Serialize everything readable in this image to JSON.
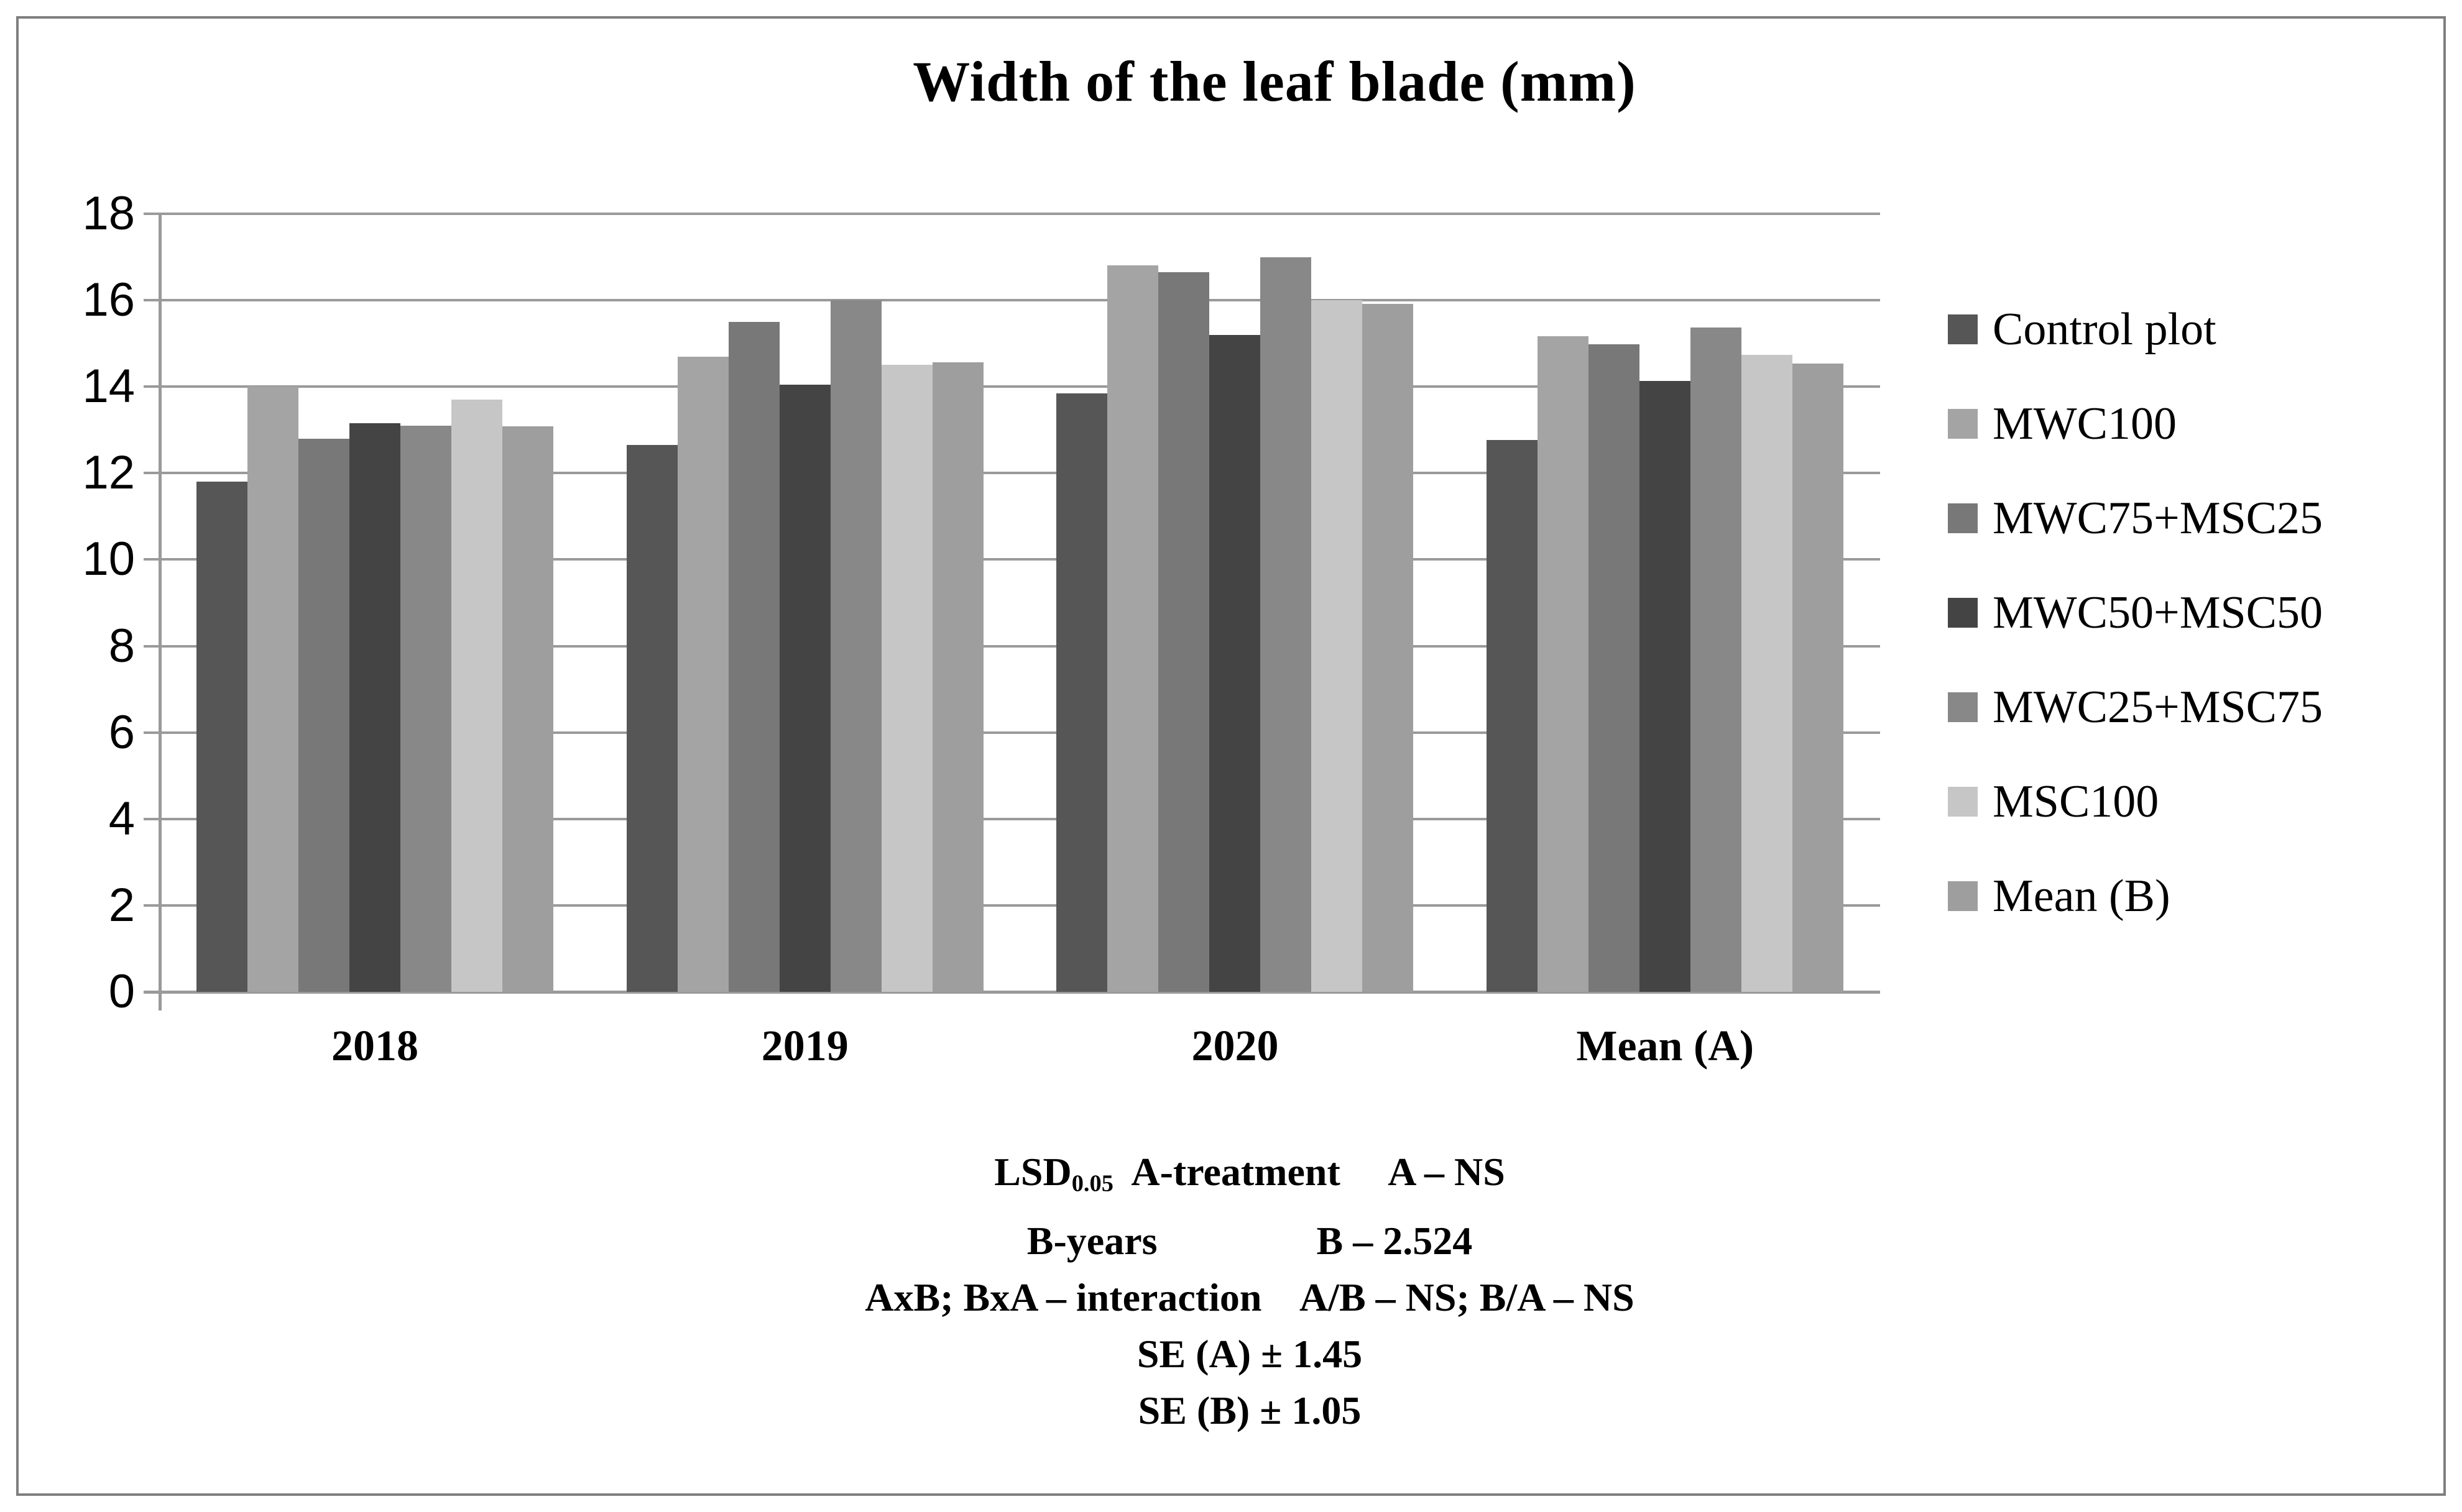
{
  "figure": {
    "title": "Width of the leaf blade (mm)"
  },
  "chart_data": {
    "type": "bar",
    "title": "Width of the leaf blade (mm)",
    "categories": [
      "2018",
      "2019",
      "2020",
      "Mean (A)"
    ],
    "series": [
      {
        "name": "Control plot",
        "color": "#565656",
        "values": [
          11.8,
          12.65,
          13.85,
          12.77
        ]
      },
      {
        "name": "MWC100",
        "color": "#a4a4a4",
        "values": [
          14.0,
          14.7,
          16.8,
          15.17
        ]
      },
      {
        "name": "MWC75+MSC25",
        "color": "#787878",
        "values": [
          12.8,
          15.5,
          16.65,
          14.98
        ]
      },
      {
        "name": "MWC50+MSC50",
        "color": "#444444",
        "values": [
          13.15,
          14.05,
          15.2,
          14.13
        ]
      },
      {
        "name": "MWC25+MSC75",
        "color": "#888888",
        "values": [
          13.1,
          16.0,
          17.0,
          15.37
        ]
      },
      {
        "name": "MSC100",
        "color": "#c6c6c6",
        "values": [
          13.7,
          14.5,
          16.0,
          14.73
        ]
      },
      {
        "name": "Mean (B)",
        "color": "#9e9e9e",
        "values": [
          13.09,
          14.57,
          15.92,
          14.53
        ]
      }
    ],
    "ylim": [
      0,
      18
    ],
    "ytick_step": 2,
    "ytick_labels": [
      "0",
      "2",
      "4",
      "6",
      "8",
      "10",
      "12",
      "14",
      "16",
      "18"
    ],
    "grid": "horizontal",
    "gridline_color": "#9a9a9a",
    "legend_position": "right",
    "xlabel": "",
    "ylabel": ""
  },
  "footnote": {
    "lsd_label": "LSD",
    "lsd_sub": "0.05",
    "line1_rest": "  A-treatment     A – NS",
    "line2": "B-years                B – 2.524",
    "line3": "AxB; BxA – interaction    A/B – NS; B/A – NS",
    "line4": "SE (A) ± 1.45",
    "line5": "SE (B) ± 1.05"
  }
}
